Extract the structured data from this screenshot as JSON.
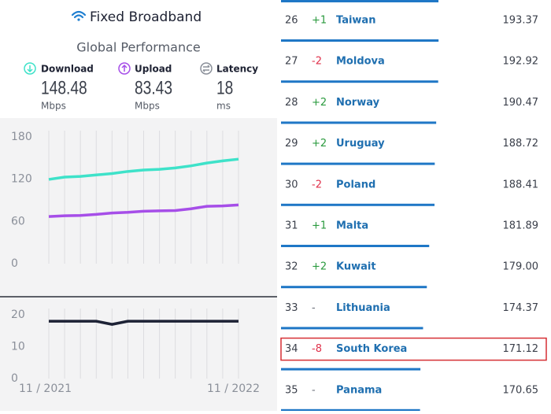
{
  "header": {
    "title": "Fixed Broadband",
    "subtitle": "Global Performance"
  },
  "stats": [
    {
      "label": "Download",
      "value": "148.48",
      "unit": "Mbps"
    },
    {
      "label": "Upload",
      "value": "83.43",
      "unit": "Mbps"
    },
    {
      "label": "Latency",
      "value": "18",
      "unit": "ms"
    }
  ],
  "speed_chart": {
    "type": "line",
    "categories": [
      "11 / 2021",
      null,
      null,
      null,
      null,
      null,
      null,
      null,
      null,
      null,
      null,
      null,
      "11 / 2022"
    ],
    "series": [
      {
        "color": "#3ee2c9",
        "values": [
          119.7,
          123,
          124,
          126,
          128,
          131,
          133,
          134,
          136,
          139,
          143,
          146,
          148.48
        ]
      },
      {
        "color": "#a64ee8",
        "values": [
          66.9,
          68,
          68.5,
          70,
          72,
          73,
          74.5,
          75,
          75.5,
          78,
          81.5,
          82,
          83.43
        ]
      }
    ],
    "ylim": [
      0,
      180
    ],
    "yticks": [
      0,
      60,
      120,
      180
    ]
  },
  "latency_chart": {
    "type": "line",
    "series": [
      {
        "color": "#1d2235",
        "values": [
          18,
          18,
          18,
          18,
          17,
          18,
          18,
          18,
          18,
          18,
          18,
          18,
          18
        ]
      }
    ],
    "ylim": [
      0,
      20
    ],
    "yticks": [
      0,
      10,
      20
    ]
  },
  "ranking": {
    "highlight_rank": 34,
    "rows": [
      {
        "rank": 26,
        "change": "+1",
        "country": "Taiwan",
        "speed": "193.37"
      },
      {
        "rank": 27,
        "change": "-2",
        "country": "Moldova",
        "speed": "192.92"
      },
      {
        "rank": 28,
        "change": "+2",
        "country": "Norway",
        "speed": "190.47"
      },
      {
        "rank": 29,
        "change": "+2",
        "country": "Uruguay",
        "speed": "188.72"
      },
      {
        "rank": 30,
        "change": "-2",
        "country": "Poland",
        "speed": "188.41"
      },
      {
        "rank": 31,
        "change": "+1",
        "country": "Malta",
        "speed": "181.89"
      },
      {
        "rank": 32,
        "change": "+2",
        "country": "Kuwait",
        "speed": "179.00"
      },
      {
        "rank": 33,
        "change": "-",
        "country": "Lithuania",
        "speed": "174.37"
      },
      {
        "rank": 34,
        "change": "-8",
        "country": "South Korea",
        "speed": "171.12"
      },
      {
        "rank": 35,
        "change": "-",
        "country": "Panama",
        "speed": "170.65"
      }
    ]
  }
}
